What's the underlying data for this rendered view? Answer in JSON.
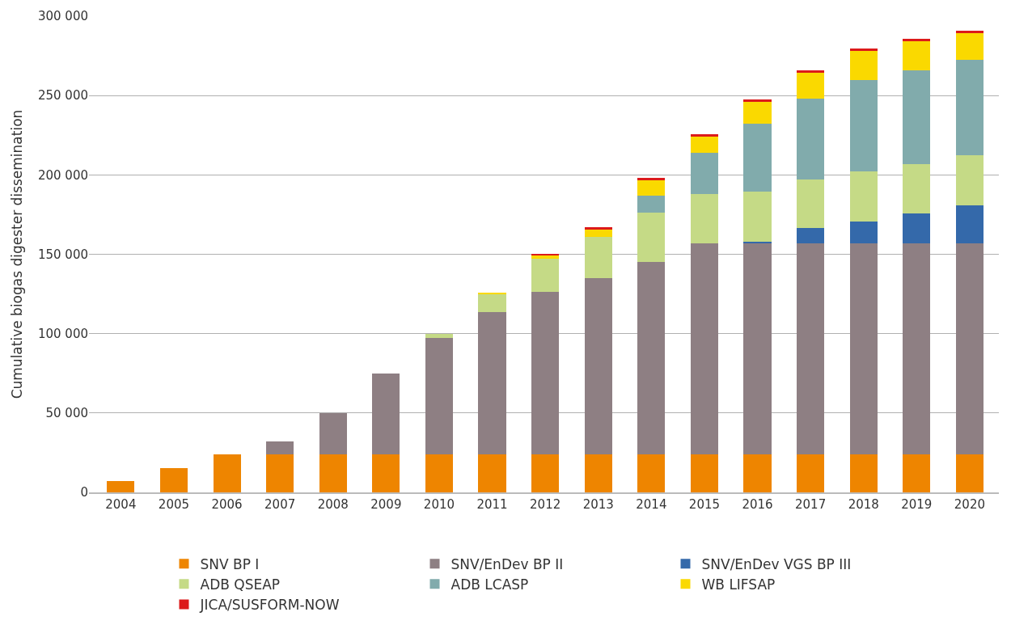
{
  "chart_data": {
    "type": "bar",
    "stacked": true,
    "ylabel": "Cumulative biogas digester dissemination",
    "categories": [
      "2004",
      "2005",
      "2006",
      "2007",
      "2008",
      "2009",
      "2010",
      "2011",
      "2012",
      "2013",
      "2014",
      "2015",
      "2016",
      "2017",
      "2018",
      "2019",
      "2020"
    ],
    "series": [
      {
        "name": "SNV BP I",
        "color": "#ee8500",
        "values": [
          7000,
          15500,
          24000,
          24000,
          24000,
          24000,
          24000,
          24000,
          24000,
          24000,
          24000,
          24000,
          24000,
          24000,
          24000,
          24000,
          24000
        ]
      },
      {
        "name": "SNV/EnDev BP II",
        "color": "#8e7f83",
        "values": [
          null,
          null,
          null,
          8000,
          26000,
          51000,
          73500,
          89500,
          102500,
          111000,
          121000,
          133000,
          133000,
          133000,
          133000,
          133000,
          133000
        ]
      },
      {
        "name": "SNV/EnDev VGS BP III",
        "color": "#3469aa",
        "values": [
          null,
          null,
          null,
          null,
          null,
          null,
          null,
          null,
          null,
          null,
          null,
          null,
          1000,
          9500,
          13500,
          18500,
          24000
        ]
      },
      {
        "name": "ADB QSEAP",
        "color": "#c5da86",
        "values": [
          null,
          null,
          null,
          null,
          null,
          null,
          2500,
          11500,
          20500,
          26000,
          31000,
          31000,
          31500,
          30500,
          31500,
          31500,
          31500
        ]
      },
      {
        "name": "ADB LCASP",
        "color": "#81abac",
        "values": [
          null,
          null,
          null,
          null,
          null,
          null,
          null,
          null,
          null,
          null,
          11000,
          26000,
          43000,
          51000,
          58000,
          59000,
          60000
        ]
      },
      {
        "name": "WB LIFSAP",
        "color": "#fad900",
        "values": [
          null,
          null,
          null,
          null,
          null,
          null,
          null,
          500,
          2500,
          5000,
          10000,
          10500,
          14000,
          16500,
          18000,
          18000,
          17000
        ]
      },
      {
        "name": "JICA/SUSFORM-NOW",
        "color": "#dc1a1a",
        "values": [
          null,
          null,
          null,
          null,
          null,
          null,
          null,
          null,
          1000,
          1000,
          1000,
          1000,
          1000,
          1500,
          1500,
          1500,
          1500
        ]
      }
    ],
    "ylim": [
      0,
      300000
    ],
    "yticks": [
      {
        "value": 0,
        "label": "0"
      },
      {
        "value": 50000,
        "label": "50 000"
      },
      {
        "value": 100000,
        "label": "100 000"
      },
      {
        "value": 150000,
        "label": "150 000"
      },
      {
        "value": 200000,
        "label": "200 000"
      },
      {
        "value": 250000,
        "label": "250 000"
      },
      {
        "value": 300000,
        "label": "300 000"
      }
    ],
    "grid": "y",
    "legend": "bottom"
  }
}
